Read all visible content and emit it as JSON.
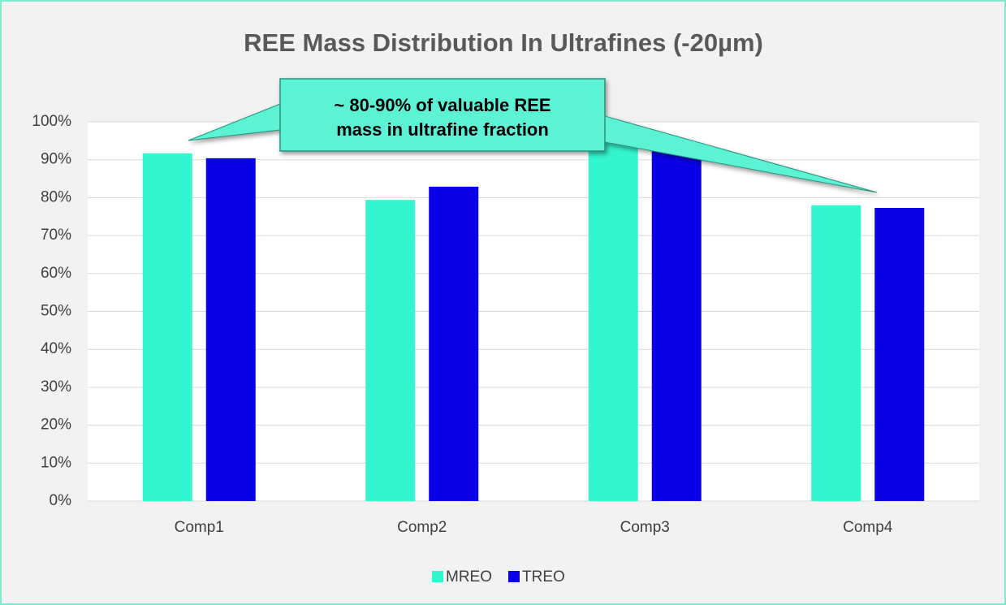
{
  "chart_data": {
    "type": "bar",
    "title": "REE Mass Distribution In Ultrafines (-20µm)",
    "annotation": [
      "~ 80-90% of valuable REE",
      "mass in ultrafine fraction"
    ],
    "categories": [
      "Comp1",
      "Comp2",
      "Comp3",
      "Comp4"
    ],
    "series": [
      {
        "name": "MREO",
        "color": "#33f5cf",
        "values": [
          91.7,
          79.4,
          95,
          78
        ]
      },
      {
        "name": "TREO",
        "color": "#0a00e8",
        "values": [
          90.4,
          82.9,
          93,
          77.3
        ]
      }
    ],
    "ylim": [
      0,
      100
    ],
    "yticks": [
      {
        "value": 0,
        "label": "0%"
      },
      {
        "value": 10,
        "label": "10%"
      },
      {
        "value": 20,
        "label": "20%"
      },
      {
        "value": 30,
        "label": "30%"
      },
      {
        "value": 40,
        "label": "40%"
      },
      {
        "value": 50,
        "label": "50%"
      },
      {
        "value": 60,
        "label": "60%"
      },
      {
        "value": 70,
        "label": "70%"
      },
      {
        "value": 80,
        "label": "80%"
      },
      {
        "value": 90,
        "label": "90%"
      },
      {
        "value": 100,
        "label": "100%"
      }
    ],
    "grid": true,
    "legend": "bottom"
  }
}
